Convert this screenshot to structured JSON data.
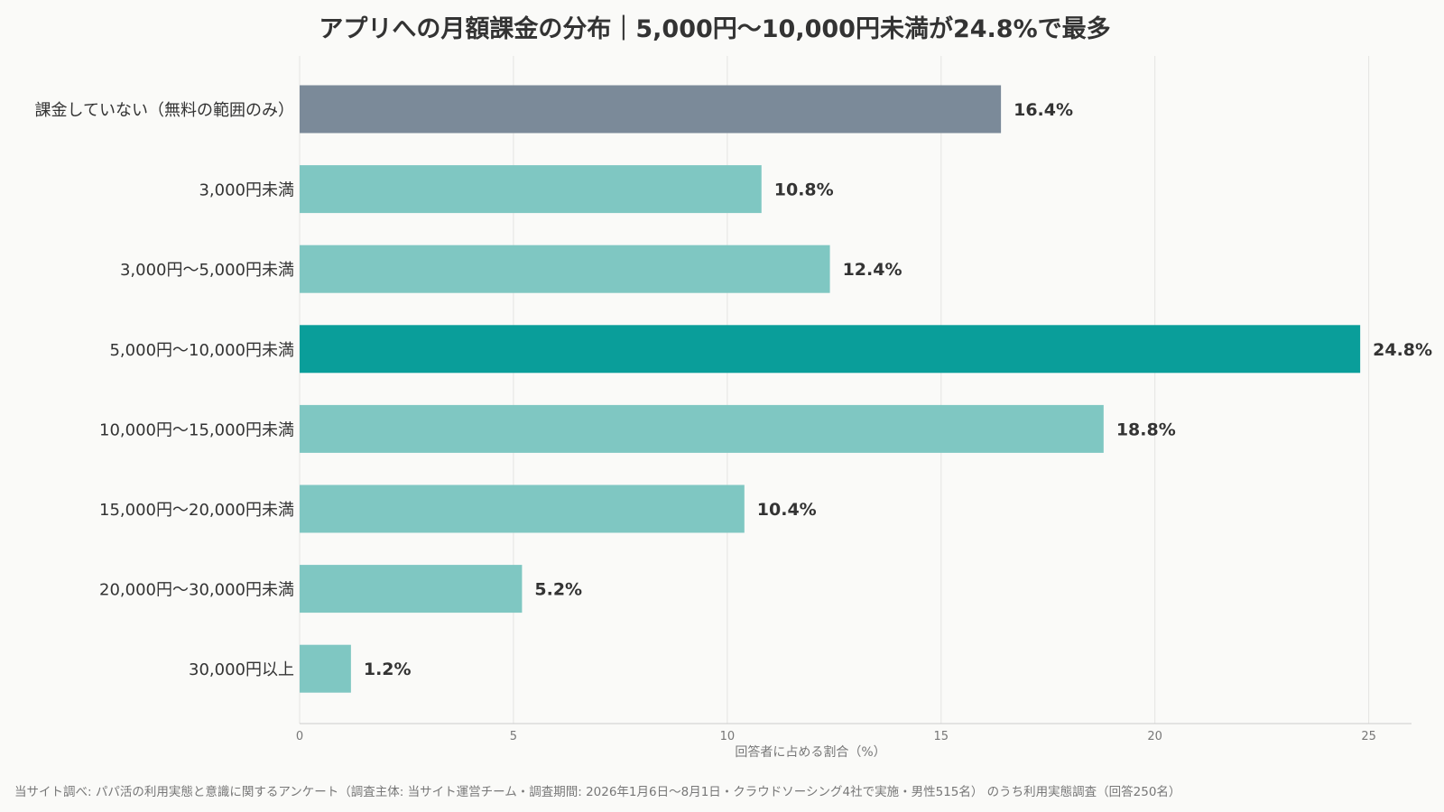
{
  "chart_data": {
    "type": "bar",
    "orientation": "horizontal",
    "title": "アプリへの月額課金の分布｜5,000円〜10,000円未満が24.8%で最多",
    "xlabel": "回答者に占める割合（%）",
    "ylabel": "",
    "xlim": [
      0,
      26
    ],
    "xticks": [
      0,
      5,
      10,
      15,
      20,
      25
    ],
    "grid": true,
    "categories": [
      "課金していない（無料の範囲のみ）",
      "3,000円未満",
      "3,000円〜5,000円未満",
      "5,000円〜10,000円未満",
      "10,000円〜15,000円未満",
      "15,000円〜20,000円未満",
      "20,000円〜30,000円未満",
      "30,000円以上"
    ],
    "values": [
      16.4,
      10.8,
      12.4,
      24.8,
      18.8,
      10.4,
      5.2,
      1.2
    ],
    "value_labels": [
      "16.4%",
      "10.8%",
      "12.4%",
      "24.8%",
      "18.8%",
      "10.4%",
      "5.2%",
      "1.2%"
    ],
    "bar_colors": [
      "#7b8a99",
      "#7fc7c2",
      "#7fc7c2",
      "#0a9e9a",
      "#7fc7c2",
      "#7fc7c2",
      "#7fc7c2",
      "#7fc7c2"
    ],
    "source": "当サイト調べ: パパ活の利用実態と意識に関するアンケート（調査主体: 当サイト運営チーム・調査期間: 2026年1月6日〜8月1日・クラウドソーシング4社で実施・男性515名） のうち利用実態調査（回答250名）"
  },
  "colors": {
    "background": "#fafaf8",
    "highlight": "#0a9e9a",
    "muted": "#7fc7c2",
    "none_bar": "#7b8a99",
    "text": "#333333",
    "subtle_text": "#777777",
    "grid": "#e4e4e2"
  }
}
